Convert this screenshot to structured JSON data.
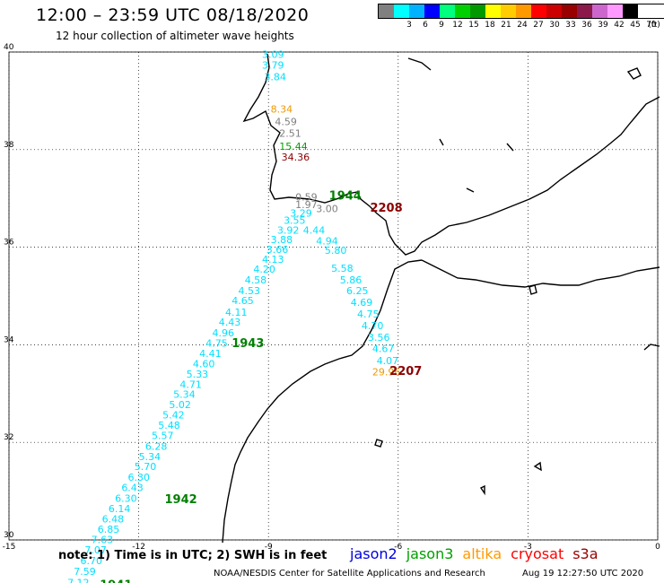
{
  "header": {
    "title": "12:00 – 23:59 UTC 08/18/2020",
    "subtitle": "12 hour collection of altimeter wave heights"
  },
  "legend": {
    "unit": "(ft)",
    "levels": [
      {
        "label": "",
        "color": "#808080"
      },
      {
        "label": "3",
        "color": "#00ffff"
      },
      {
        "label": "6",
        "color": "#00b2ff"
      },
      {
        "label": "9",
        "color": "#0000ff"
      },
      {
        "label": "12",
        "color": "#00ff7f"
      },
      {
        "label": "15",
        "color": "#00d000"
      },
      {
        "label": "18",
        "color": "#009900"
      },
      {
        "label": "21",
        "color": "#ffff00"
      },
      {
        "label": "24",
        "color": "#ffcc00"
      },
      {
        "label": "27",
        "color": "#ff9900"
      },
      {
        "label": "30",
        "color": "#ff0000"
      },
      {
        "label": "33",
        "color": "#cc0000"
      },
      {
        "label": "36",
        "color": "#990000"
      },
      {
        "label": "39",
        "color": "#8b1a4a"
      },
      {
        "label": "42",
        "color": "#cc66cc"
      },
      {
        "label": "45",
        "color": "#ff99ff"
      },
      {
        "label": "70",
        "color": "#000000"
      }
    ]
  },
  "map": {
    "lon_ticks": [
      "-15",
      "-12",
      "-9",
      "-6",
      "-3",
      "0"
    ],
    "lat_ticks": [
      "40",
      "38",
      "36",
      "34",
      "32",
      "30"
    ],
    "lon_range": [
      -15,
      0
    ],
    "lat_range": [
      30,
      40
    ]
  },
  "colors": {
    "cyan": "#00e0ff",
    "gray": "#7f7f7f",
    "green": "#008000",
    "darkred": "#8b0000",
    "orange": "#ee9900",
    "jason2": "#0000dd",
    "jason3": "#00a000",
    "altika": "#ff9900",
    "cryosat": "#ff0000",
    "s3a": "#990000"
  },
  "observations": [
    {
      "lon": -9.15,
      "lat": 39.88,
      "value": "3.09",
      "color": "cyan"
    },
    {
      "lon": -9.15,
      "lat": 39.66,
      "value": "3.79",
      "color": "cyan"
    },
    {
      "lon": -9.1,
      "lat": 39.42,
      "value": "3.84",
      "color": "cyan"
    },
    {
      "lon": -8.95,
      "lat": 38.76,
      "value": "8.34",
      "color": "orange"
    },
    {
      "lon": -8.85,
      "lat": 38.5,
      "value": "4.59",
      "color": "gray"
    },
    {
      "lon": -8.75,
      "lat": 38.26,
      "value": "2.51",
      "color": "gray"
    },
    {
      "lon": -8.75,
      "lat": 38.0,
      "value": "15.44",
      "color": "jason3"
    },
    {
      "lon": -8.7,
      "lat": 37.78,
      "value": "34.36",
      "color": "darkred"
    },
    {
      "lon": -8.38,
      "lat": 36.96,
      "value": "0.59",
      "color": "gray"
    },
    {
      "lon": -8.38,
      "lat": 36.8,
      "value": "1.97",
      "color": "gray"
    },
    {
      "lon": -8.5,
      "lat": 36.63,
      "value": "3.29",
      "color": "cyan"
    },
    {
      "lon": -7.9,
      "lat": 36.72,
      "value": "3.00",
      "color": "gray"
    },
    {
      "lon": -8.65,
      "lat": 36.48,
      "value": "3.55",
      "color": "cyan"
    },
    {
      "lon": -8.8,
      "lat": 36.28,
      "value": "3.92",
      "color": "cyan"
    },
    {
      "lon": -8.2,
      "lat": 36.28,
      "value": "4.44",
      "color": "cyan"
    },
    {
      "lon": -8.95,
      "lat": 36.08,
      "value": "3.88",
      "color": "cyan"
    },
    {
      "lon": -7.9,
      "lat": 36.06,
      "value": "4.94",
      "color": "cyan"
    },
    {
      "lon": -9.05,
      "lat": 35.88,
      "value": "3.66",
      "color": "cyan"
    },
    {
      "lon": -7.7,
      "lat": 35.86,
      "value": "5.80",
      "color": "cyan"
    },
    {
      "lon": -9.15,
      "lat": 35.68,
      "value": "4.13",
      "color": "cyan"
    },
    {
      "lon": -9.35,
      "lat": 35.48,
      "value": "4.20",
      "color": "cyan"
    },
    {
      "lon": -7.55,
      "lat": 35.5,
      "value": "5.58",
      "color": "cyan"
    },
    {
      "lon": -9.55,
      "lat": 35.26,
      "value": "4.58",
      "color": "cyan"
    },
    {
      "lon": -7.35,
      "lat": 35.26,
      "value": "5.86",
      "color": "cyan"
    },
    {
      "lon": -9.7,
      "lat": 35.04,
      "value": "4.53",
      "color": "cyan"
    },
    {
      "lon": -7.2,
      "lat": 35.04,
      "value": "6.25",
      "color": "cyan"
    },
    {
      "lon": -9.85,
      "lat": 34.83,
      "value": "4.65",
      "color": "cyan"
    },
    {
      "lon": -7.1,
      "lat": 34.8,
      "value": "4.69",
      "color": "cyan"
    },
    {
      "lon": -10.0,
      "lat": 34.6,
      "value": "4.11",
      "color": "cyan"
    },
    {
      "lon": -6.95,
      "lat": 34.56,
      "value": "4.75",
      "color": "cyan"
    },
    {
      "lon": -10.15,
      "lat": 34.39,
      "value": "4.43",
      "color": "cyan"
    },
    {
      "lon": -6.85,
      "lat": 34.32,
      "value": "4.70",
      "color": "cyan"
    },
    {
      "lon": -10.3,
      "lat": 34.17,
      "value": "4.96",
      "color": "cyan"
    },
    {
      "lon": -6.7,
      "lat": 34.08,
      "value": "3.56",
      "color": "cyan"
    },
    {
      "lon": -10.45,
      "lat": 33.96,
      "value": "4.75",
      "color": "cyan"
    },
    {
      "lon": -6.6,
      "lat": 33.85,
      "value": "4.67",
      "color": "cyan"
    },
    {
      "lon": -10.6,
      "lat": 33.75,
      "value": "4.41",
      "color": "cyan"
    },
    {
      "lon": -10.75,
      "lat": 33.54,
      "value": "4.60",
      "color": "cyan"
    },
    {
      "lon": -6.5,
      "lat": 33.6,
      "value": "4.07",
      "color": "cyan"
    },
    {
      "lon": -10.9,
      "lat": 33.33,
      "value": "5.33",
      "color": "cyan"
    },
    {
      "lon": -6.6,
      "lat": 33.37,
      "value": "29.96",
      "color": "orange"
    },
    {
      "lon": -11.05,
      "lat": 33.12,
      "value": "4.71",
      "color": "cyan"
    },
    {
      "lon": -11.2,
      "lat": 32.91,
      "value": "5.34",
      "color": "cyan"
    },
    {
      "lon": -11.3,
      "lat": 32.7,
      "value": "5.02",
      "color": "cyan"
    },
    {
      "lon": -11.45,
      "lat": 32.49,
      "value": "5.42",
      "color": "cyan"
    },
    {
      "lon": -11.55,
      "lat": 32.28,
      "value": "5.48",
      "color": "cyan"
    },
    {
      "lon": -11.7,
      "lat": 32.07,
      "value": "5.57",
      "color": "cyan"
    },
    {
      "lon": -11.85,
      "lat": 31.85,
      "value": "6.28",
      "color": "cyan"
    },
    {
      "lon": -12.0,
      "lat": 31.64,
      "value": "5.34",
      "color": "cyan"
    },
    {
      "lon": -12.1,
      "lat": 31.43,
      "value": "5.70",
      "color": "cyan"
    },
    {
      "lon": -12.25,
      "lat": 31.21,
      "value": "6.30",
      "color": "cyan"
    },
    {
      "lon": -12.4,
      "lat": 31.0,
      "value": "6.43",
      "color": "cyan"
    },
    {
      "lon": -12.55,
      "lat": 30.78,
      "value": "6.30",
      "color": "cyan"
    },
    {
      "lon": -12.7,
      "lat": 30.57,
      "value": "6.14",
      "color": "cyan"
    },
    {
      "lon": -12.85,
      "lat": 30.36,
      "value": "6.48",
      "color": "cyan"
    },
    {
      "lon": -12.95,
      "lat": 30.15,
      "value": "6.85",
      "color": "cyan"
    },
    {
      "lon": -13.1,
      "lat": 29.94,
      "value": "7.63",
      "color": "cyan"
    },
    {
      "lon": -13.25,
      "lat": 29.72,
      "value": "7.07",
      "color": "cyan"
    },
    {
      "lon": -13.35,
      "lat": 29.5,
      "value": "6.70",
      "color": "cyan"
    },
    {
      "lon": -13.5,
      "lat": 29.28,
      "value": "7.59",
      "color": "cyan"
    },
    {
      "lon": -13.65,
      "lat": 29.05,
      "value": "7.12",
      "color": "cyan"
    }
  ],
  "pass_times": [
    {
      "lon": -7.6,
      "lat": 36.98,
      "time": "1944",
      "color": "green"
    },
    {
      "lon": -6.65,
      "lat": 36.73,
      "time": "2208",
      "color": "darkred"
    },
    {
      "lon": -9.85,
      "lat": 33.95,
      "time": "1943",
      "color": "green"
    },
    {
      "lon": -6.2,
      "lat": 33.38,
      "time": "2207",
      "color": "darkred"
    },
    {
      "lon": -11.4,
      "lat": 30.75,
      "time": "1942",
      "color": "green"
    },
    {
      "lon": -12.9,
      "lat": 29.0,
      "time": "1941",
      "color": "green"
    }
  ],
  "footer": {
    "note": "note: 1) Time is in UTC; 2) SWH is in feet",
    "satellites": [
      {
        "name": "jason2",
        "color": "jason2"
      },
      {
        "name": "jason3",
        "color": "jason3"
      },
      {
        "name": "altika",
        "color": "altika"
      },
      {
        "name": "cryosat",
        "color": "cryosat"
      },
      {
        "name": "s3a",
        "color": "s3a"
      }
    ],
    "credit": "NOAA/NESDIS Center for Satellite Applications and Research",
    "timestamp": "Aug 19 12:27:50 UTC 2020"
  }
}
